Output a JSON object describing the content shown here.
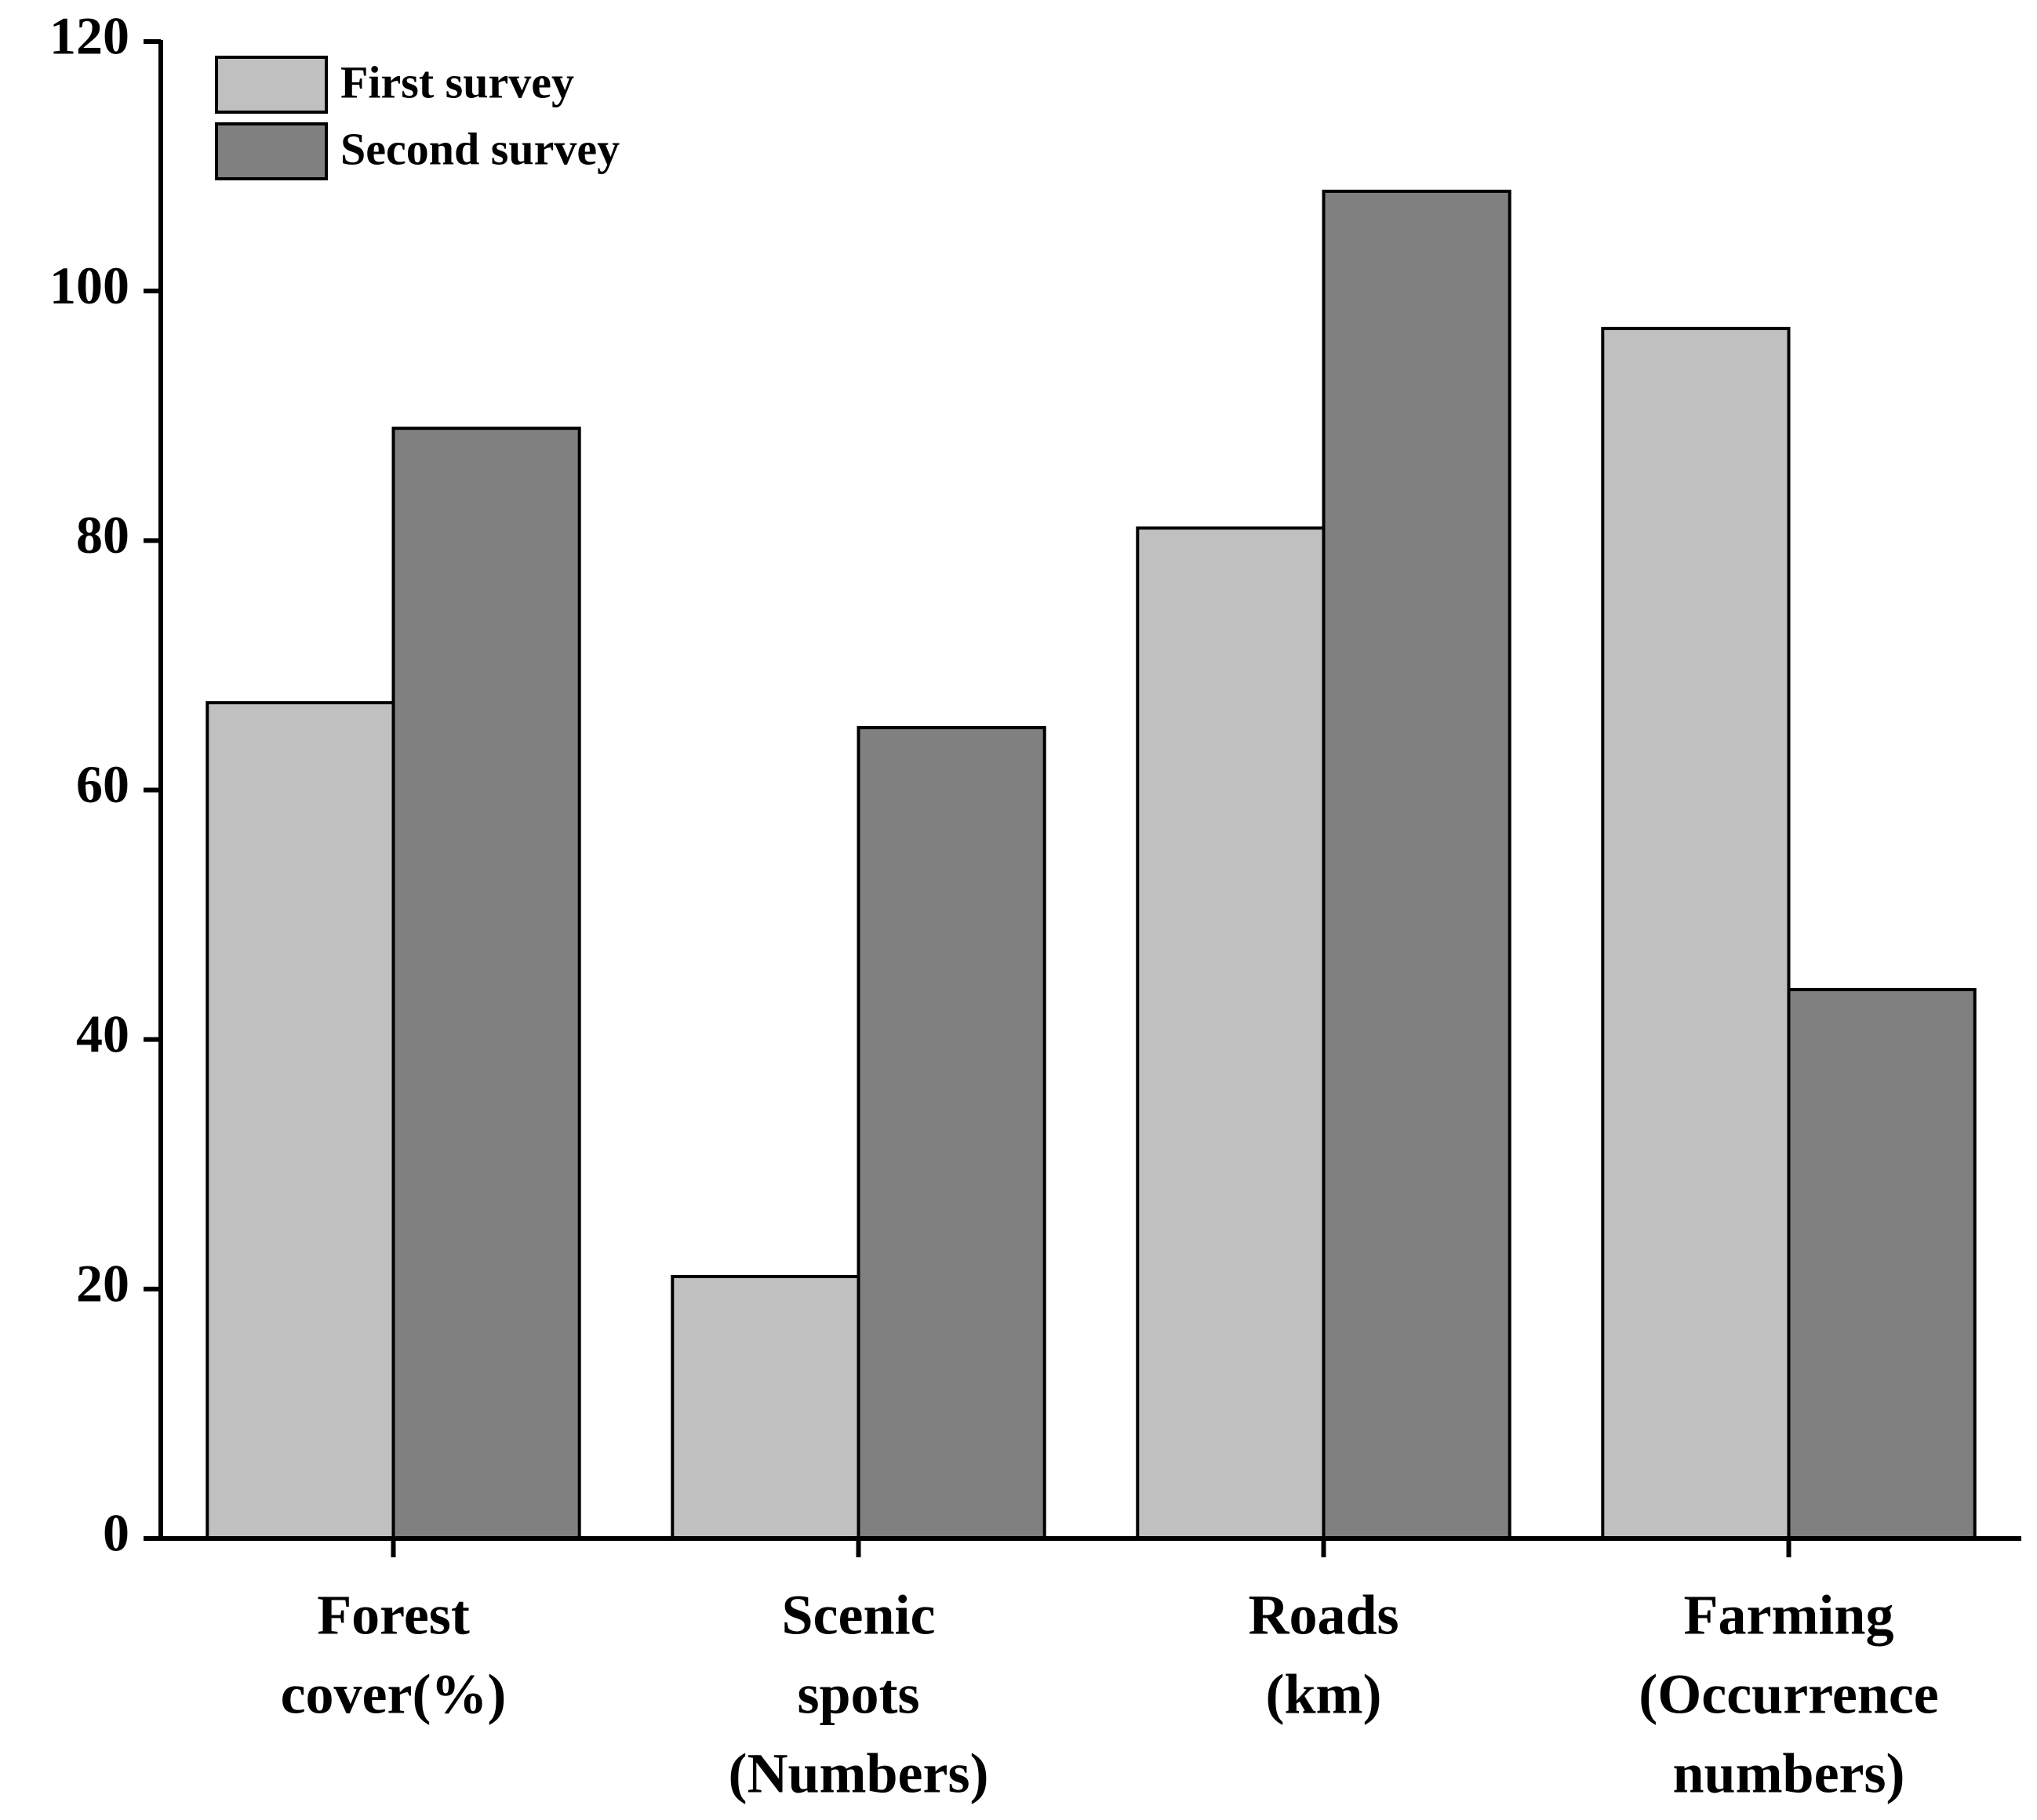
{
  "chart_data": {
    "type": "bar",
    "categories": [
      [
        "Forest",
        "cover(%)"
      ],
      [
        "Scenic",
        "spots",
        "(Numbers)"
      ],
      [
        "Roads",
        "(km)"
      ],
      [
        "Farming",
        "(Occurrence",
        "numbers)"
      ]
    ],
    "series": [
      {
        "name": "First survey",
        "color": "#c0c0c0",
        "values": [
          67,
          21,
          81,
          97
        ]
      },
      {
        "name": "Second survey",
        "color": "#808080",
        "values": [
          89,
          65,
          108,
          44
        ]
      }
    ],
    "ylim": [
      0,
      120
    ],
    "yticks": [
      0,
      20,
      40,
      60,
      80,
      100,
      120
    ],
    "grid": false,
    "legend": "upper left"
  }
}
